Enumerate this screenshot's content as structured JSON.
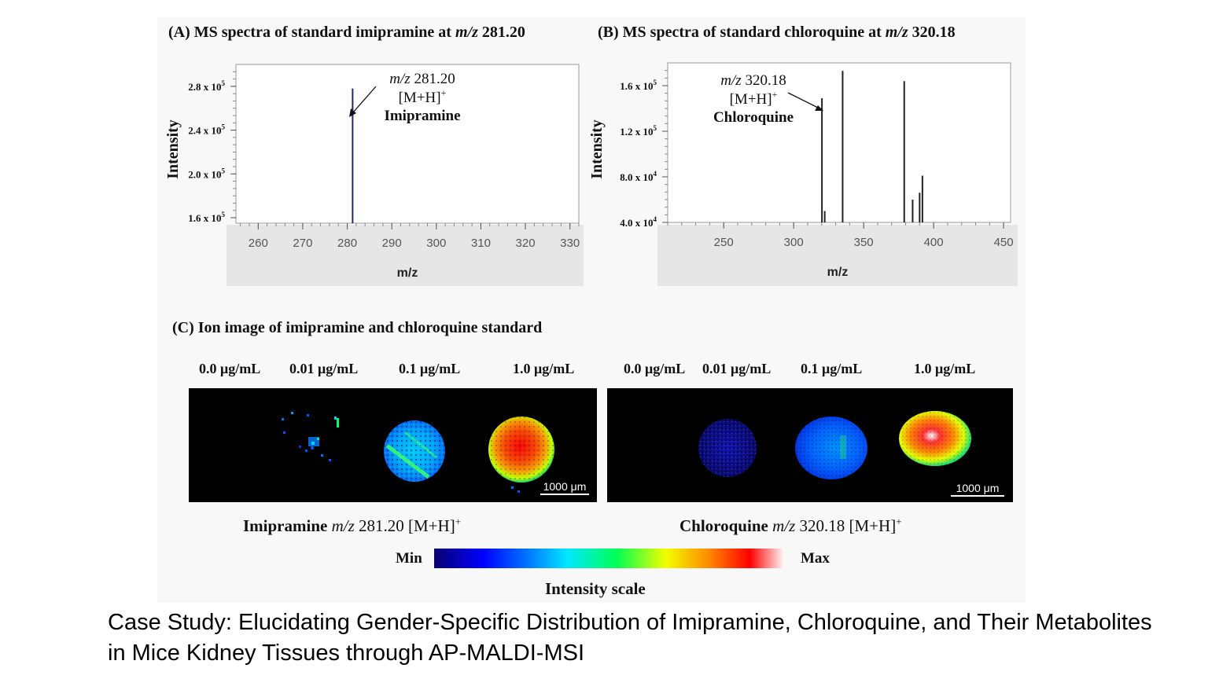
{
  "panel_a": {
    "title_prefix": "(A) MS spectra of  standard imipramine at ",
    "title_mz": "m/z",
    "title_value": " 281.20",
    "annot_mz": "m/z",
    "annot_value": " 281.20",
    "annot_ion": "[M+H]",
    "annot_sup": "+",
    "annot_name": "Imipramine",
    "y_ticks": [
      {
        "label": "1.6 x 10",
        "exp": "5"
      },
      {
        "label": "2.0 x 10",
        "exp": "5"
      },
      {
        "label": "2.4 x 10",
        "exp": "5"
      },
      {
        "label": "2.8 x 10",
        "exp": "5"
      }
    ]
  },
  "panel_b": {
    "title_prefix": "(B) MS spectra of  standard chloroquine at ",
    "title_mz": "m/z",
    "title_value": " 320.18",
    "annot_mz": "m/z",
    "annot_value": " 320.18",
    "annot_ion": "[M+H]",
    "annot_sup": "+",
    "annot_name": "Chloroquine",
    "y_ticks": [
      {
        "label": "4.0 x 10",
        "exp": "4"
      },
      {
        "label": "8.0 x 10",
        "exp": "4"
      },
      {
        "label": "1.2 x 10",
        "exp": "5"
      },
      {
        "label": "1.6 x 10",
        "exp": "5"
      }
    ]
  },
  "chart_data": [
    {
      "type": "bar",
      "title": "(A) MS spectra of  standard imipramine at m/z 281.20",
      "xlabel": "m/z",
      "ylabel": "Intensity",
      "xlim": [
        255,
        332
      ],
      "ylim": [
        155000,
        300000
      ],
      "x_ticks": [
        260,
        270,
        280,
        290,
        300,
        310,
        320,
        330
      ],
      "peaks": [
        {
          "mz": 281.2,
          "intensity": 278000,
          "color": "#1c2a6e"
        }
      ],
      "annotations": [
        "m/z 281.20",
        "[M+H]+",
        "Imipramine"
      ]
    },
    {
      "type": "bar",
      "title": "(B) MS spectra of  standard chloroquine at m/z 320.18",
      "xlabel": "m/z",
      "ylabel": "Intensity",
      "xlim": [
        210,
        455
      ],
      "ylim": [
        40000,
        180000
      ],
      "x_ticks": [
        250,
        300,
        350,
        400,
        450
      ],
      "peaks": [
        {
          "mz": 320.2,
          "intensity": 149000
        },
        {
          "mz": 322.2,
          "intensity": 50000
        },
        {
          "mz": 335.0,
          "intensity": 173000
        },
        {
          "mz": 379.0,
          "intensity": 164000
        },
        {
          "mz": 385.0,
          "intensity": 60000
        },
        {
          "mz": 390.0,
          "intensity": 66000
        },
        {
          "mz": 392.0,
          "intensity": 81000
        }
      ],
      "annotations": [
        "m/z 320.18",
        "[M+H]+",
        "Chloroquine"
      ]
    }
  ],
  "panel_c": {
    "title": "(C) Ion image of imipramine and chloroquine standard",
    "left_concentrations": [
      "0.0 μg/mL",
      "0.01 μg/mL",
      "0.1 μg/mL",
      "1.0 μg/mL"
    ],
    "right_concentrations": [
      "0.0 μg/mL",
      "0.01 μg/mL",
      "0.1 μg/mL",
      "1.0 μg/mL"
    ],
    "scale_bar_label": "1000 μm",
    "left_label_name": "Imipramine",
    "left_label_mz": "m/z",
    "left_label_rest": " 281.20 [M+H]",
    "right_label_name": "Chloroquine",
    "right_label_mz": "m/z",
    "right_label_rest": " 320.18 [M+H]",
    "label_sup": "+",
    "min_label": "Min",
    "max_label": "Max",
    "scale_title": "Intensity scale"
  },
  "caption": "Case Study: Elucidating Gender-Specific Distribution of Imipramine, Chloroquine, and Their Metabolites in Mice Kidney Tissues through AP-MALDI-MSI"
}
